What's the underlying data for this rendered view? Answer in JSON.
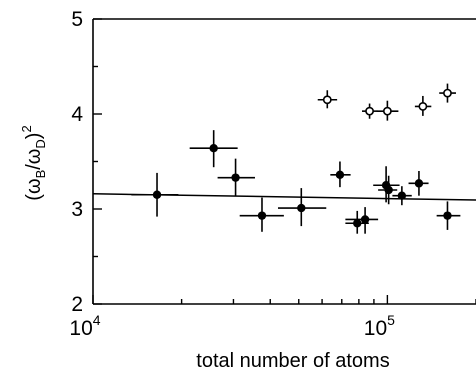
{
  "chart_data": {
    "type": "scatter",
    "xscale": "log",
    "xlim": [
      10000,
      200000
    ],
    "ylim": [
      2,
      5
    ],
    "xlabel": "total number of atoms",
    "ylabel": "(ω_B/ω_D)^2",
    "ylabel_parts": {
      "open": "(ω",
      "sub1": "B",
      "slash": "/ω",
      "sub2": "D",
      "close": ")",
      "sup": "2"
    },
    "x_ticks": [
      {
        "value": 10000,
        "base": "10",
        "exp": "4"
      },
      {
        "value": 100000,
        "base": "10",
        "exp": "5"
      }
    ],
    "y_ticks": [
      {
        "value": 2,
        "label": "2"
      },
      {
        "value": 3,
        "label": "3"
      },
      {
        "value": 4,
        "label": "4"
      },
      {
        "value": 5,
        "label": "5"
      }
    ],
    "fit_line": {
      "x": [
        10000,
        200000
      ],
      "y": [
        3.16,
        3.095
      ]
    },
    "series": [
      {
        "marker": "filled",
        "points": [
          {
            "x": 16500,
            "y": 3.15,
            "xerr": [
              13500,
              19500
            ],
            "yerr": [
              2.92,
              3.38
            ]
          },
          {
            "x": 25700,
            "y": 3.64,
            "xerr": [
              21300,
              31000
            ],
            "yerr": [
              3.44,
              3.83
            ]
          },
          {
            "x": 30500,
            "y": 3.33,
            "xerr": [
              26500,
              35500
            ],
            "yerr": [
              3.14,
              3.53
            ]
          },
          {
            "x": 37500,
            "y": 2.93,
            "xerr": [
              31500,
              44500
            ],
            "yerr": [
              2.76,
              3.12
            ]
          },
          {
            "x": 51000,
            "y": 3.01,
            "xerr": [
              42500,
              62000
            ],
            "yerr": [
              2.82,
              3.22
            ]
          },
          {
            "x": 69000,
            "y": 3.36,
            "xerr": [
              64000,
              75000
            ],
            "yerr": [
              3.23,
              3.5
            ]
          },
          {
            "x": 79000,
            "y": 2.85,
            "xerr": [
              72000,
              86500
            ],
            "yerr": [
              2.74,
              2.98
            ]
          },
          {
            "x": 84000,
            "y": 2.89,
            "xerr": [
              72000,
              93000
            ],
            "yerr": [
              2.74,
              3.02
            ]
          },
          {
            "x": 99000,
            "y": 3.25,
            "xerr": [
              89500,
              110000
            ],
            "yerr": [
              3.07,
              3.45
            ]
          },
          {
            "x": 101000,
            "y": 3.2,
            "xerr": [
              93000,
              108000
            ],
            "yerr": [
              3.05,
              3.35
            ]
          },
          {
            "x": 112000,
            "y": 3.14,
            "xerr": [
              104000,
              121000
            ],
            "yerr": [
              3.04,
              3.24
            ]
          },
          {
            "x": 128000,
            "y": 3.27,
            "xerr": [
              118000,
              138000
            ],
            "yerr": [
              3.14,
              3.4
            ]
          },
          {
            "x": 160000,
            "y": 2.93,
            "xerr": [
              147000,
              177000
            ],
            "yerr": [
              2.78,
              3.08
            ]
          }
        ]
      },
      {
        "marker": "open",
        "points": [
          {
            "x": 62500,
            "y": 4.15,
            "xerr": [
              58000,
              67500
            ],
            "yerr": [
              4.06,
              4.25
            ]
          },
          {
            "x": 87000,
            "y": 4.03,
            "xerr": [
              82000,
              92500
            ],
            "yerr": [
              3.95,
              4.11
            ]
          },
          {
            "x": 100000,
            "y": 4.03,
            "xerr": [
              92000,
              109000
            ],
            "yerr": [
              3.93,
              4.14
            ]
          },
          {
            "x": 132000,
            "y": 4.08,
            "xerr": [
              124000,
              141000
            ],
            "yerr": [
              3.98,
              4.19
            ]
          },
          {
            "x": 160000,
            "y": 4.22,
            "xerr": [
              150000,
              171000
            ],
            "yerr": [
              4.12,
              4.32
            ]
          }
        ]
      }
    ]
  },
  "colors": {
    "axis": "#000000",
    "marker": "#000000",
    "background": "#ffffff"
  }
}
